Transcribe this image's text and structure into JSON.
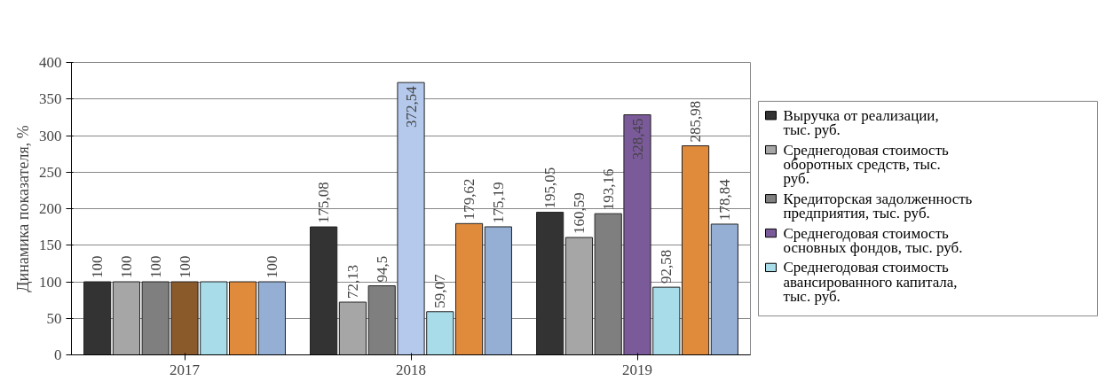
{
  "chart_data": {
    "type": "bar",
    "ylabel": "Динамика показателя, %",
    "categories": [
      "2017",
      "2018",
      "2019"
    ],
    "ylim": [
      0,
      400
    ],
    "yticks": [
      0,
      50,
      100,
      150,
      200,
      250,
      300,
      350,
      400
    ],
    "grid": "y",
    "legend": "right",
    "series": [
      {
        "name": "Выручка от реализации, тыс. руб.",
        "color": "#333333",
        "values": [
          100,
          175.08,
          195.05
        ],
        "value_labels": [
          "100",
          "175,08",
          "195,05"
        ]
      },
      {
        "name": "Среднегодовая стоимость оборотных средств, тыс. руб.",
        "color": "#a6a6a6",
        "values": [
          100,
          72.13,
          160.59
        ],
        "value_labels": [
          "100",
          "72,13",
          "160,59"
        ]
      },
      {
        "name": "Кредиторская задолженность предприятия, тыс. руб.",
        "color": "#7f7f7f",
        "values": [
          100,
          94.5,
          193.16
        ],
        "value_labels": [
          "100",
          "94,5",
          "193,16"
        ]
      },
      {
        "name": "Среднегодовая стоимость основных фондов, тыс. руб.",
        "color": "#7b5a9a",
        "colors": [
          "#8b5a2b",
          "#b4c9ec",
          "#7b5a9a"
        ],
        "values": [
          100,
          372.54,
          328.45
        ],
        "value_labels": [
          "100",
          "372,54",
          "328,45"
        ]
      },
      {
        "name": "Среднегодовая стоимость авансированного капитала, тыс. руб.",
        "color": "#a8dce8",
        "values": [
          100,
          59.07,
          92.58
        ],
        "value_labels": [
          null,
          "59,07",
          "92,58"
        ]
      },
      {
        "name": null,
        "color": "#e08a3c",
        "values": [
          100,
          179.62,
          285.98
        ],
        "value_labels": [
          null,
          "179,62",
          "285,98"
        ]
      },
      {
        "name": null,
        "color": "#94aed4",
        "values": [
          100,
          175.19,
          178.84
        ],
        "value_labels": [
          "100",
          "175,19",
          "178,84"
        ]
      }
    ]
  }
}
